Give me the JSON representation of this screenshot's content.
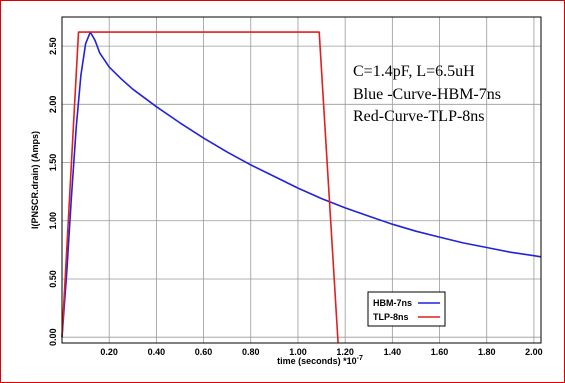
{
  "chart_data": {
    "type": "line",
    "title": "",
    "xlabel": "time (seconds) *10",
    "xlabel_exponent": "-7",
    "ylabel": "I(PNSCR.drain) (Amps)",
    "xlim": [
      0,
      2.03
    ],
    "ylim": [
      -0.05,
      2.75
    ],
    "x_ticks": [
      "0.20",
      "0.40",
      "0.60",
      "0.80",
      "1.00",
      "1.20",
      "1.40",
      "1.60",
      "1.80",
      "2.00"
    ],
    "y_ticks": [
      "0.00",
      "0.50",
      "1.00",
      "1.50",
      "2.00",
      "2.50"
    ],
    "grid": true,
    "legend_position": "bottom-right",
    "annotations": [
      "C=1.4pF, L=6.5uH",
      "Blue -Curve-HBM-7ns",
      "Red-Curve-TLP-8ns"
    ],
    "series": [
      {
        "name": "HBM-7ns",
        "color": "#2222dd",
        "x": [
          0.0,
          0.02,
          0.04,
          0.06,
          0.08,
          0.1,
          0.12,
          0.14,
          0.16,
          0.2,
          0.25,
          0.3,
          0.4,
          0.5,
          0.6,
          0.7,
          0.8,
          0.9,
          1.0,
          1.1,
          1.2,
          1.3,
          1.4,
          1.5,
          1.6,
          1.7,
          1.8,
          1.9,
          2.0,
          2.03
        ],
        "y": [
          0.0,
          0.55,
          1.2,
          1.8,
          2.25,
          2.52,
          2.62,
          2.55,
          2.44,
          2.32,
          2.22,
          2.13,
          1.98,
          1.84,
          1.71,
          1.59,
          1.48,
          1.38,
          1.28,
          1.19,
          1.11,
          1.04,
          0.97,
          0.91,
          0.86,
          0.81,
          0.77,
          0.73,
          0.7,
          0.69
        ]
      },
      {
        "name": "TLP-8ns",
        "color": "#e02020",
        "x": [
          0.0,
          0.07,
          0.09,
          1.07,
          1.09,
          1.17
        ],
        "y": [
          0.0,
          2.62,
          2.62,
          2.62,
          2.62,
          -0.05
        ]
      }
    ]
  }
}
